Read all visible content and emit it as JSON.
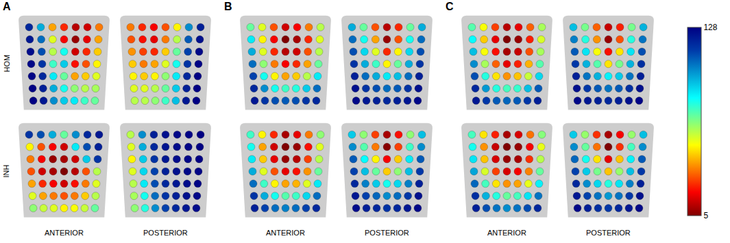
{
  "chart_data": {
    "type": "scatter",
    "marker": "circle",
    "tick_labels": false,
    "colorbar_range": [
      5,
      128
    ],
    "colorbar_ticks": [
      5,
      128
    ],
    "rows": [
      "HOM",
      "INH"
    ],
    "panels": [
      {
        "label": "A",
        "views": [
          "ANTERIOR",
          "POSTERIOR"
        ],
        "cells": [
          [
            [
              [
                118,
                95,
                40,
                25,
                12,
                15,
                35
              ],
              [
                122,
                105,
                55,
                20,
                8,
                18,
                40
              ],
              [
                125,
                110,
                60,
                80,
                15,
                25,
                45
              ],
              [
                126,
                115,
                75,
                90,
                22,
                30,
                50
              ],
              [
                127,
                118,
                85,
                70,
                40,
                45,
                55
              ],
              [
                128,
                120,
                95,
                80,
                65,
                60,
                62
              ],
              [
                128,
                122,
                100,
                90,
                85,
                75,
                70
              ]
            ],
            [
              [
                35,
                25,
                20,
                30,
                50,
                100,
                120
              ],
              [
                30,
                22,
                18,
                35,
                60,
                108,
                124
              ],
              [
                38,
                28,
                25,
                45,
                70,
                112,
                126
              ],
              [
                45,
                35,
                40,
                55,
                80,
                115,
                127
              ],
              [
                50,
                45,
                50,
                65,
                85,
                118,
                128
              ],
              [
                55,
                55,
                60,
                70,
                90,
                120,
                128
              ],
              [
                60,
                60,
                65,
                75,
                92,
                122,
                128
              ]
            ]
          ],
          [
            [
              [
                115,
                110,
                95,
                70,
                100,
                118,
                122
              ],
              [
                50,
                30,
                20,
                15,
                85,
                110,
                120
              ],
              [
                35,
                20,
                8,
                10,
                15,
                90,
                115
              ],
              [
                30,
                15,
                10,
                5,
                12,
                30,
                60
              ],
              [
                40,
                25,
                20,
                15,
                22,
                35,
                55
              ],
              [
                55,
                40,
                35,
                30,
                35,
                45,
                60
              ],
              [
                65,
                58,
                55,
                50,
                52,
                58,
                70
              ]
            ],
            [
              [
                60,
                100,
                120,
                124,
                126,
                127,
                128
              ],
              [
                55,
                95,
                118,
                123,
                125,
                127,
                128
              ],
              [
                50,
                90,
                115,
                122,
                125,
                126,
                128
              ],
              [
                55,
                88,
                112,
                120,
                124,
                126,
                127
              ],
              [
                60,
                85,
                110,
                118,
                122,
                125,
                127
              ],
              [
                62,
                80,
                105,
                115,
                120,
                124,
                126
              ],
              [
                65,
                78,
                100,
                112,
                118,
                122,
                125
              ]
            ]
          ]
        ]
      },
      {
        "label": "B",
        "views": [
          "ANTERIOR",
          "POSTERIOR"
        ],
        "cells": [
          [
            [
              [
                70,
                55,
                30,
                15,
                20,
                35,
                60
              ],
              [
                85,
                50,
                20,
                5,
                10,
                25,
                55
              ],
              [
                95,
                55,
                25,
                12,
                15,
                30,
                60
              ],
              [
                105,
                65,
                35,
                20,
                25,
                40,
                70
              ],
              [
                112,
                80,
                50,
                40,
                45,
                60,
                85
              ],
              [
                118,
                100,
                80,
                75,
                78,
                90,
                105
              ],
              [
                122,
                115,
                110,
                108,
                110,
                115,
                118
              ]
            ],
            [
              [
                95,
                70,
                30,
                12,
                25,
                70,
                95
              ],
              [
                105,
                80,
                40,
                8,
                30,
                80,
                105
              ],
              [
                110,
                88,
                55,
                25,
                50,
                88,
                110
              ],
              [
                115,
                95,
                75,
                50,
                70,
                95,
                115
              ],
              [
                120,
                105,
                95,
                85,
                92,
                105,
                120
              ],
              [
                124,
                115,
                110,
                105,
                108,
                115,
                124
              ],
              [
                126,
                122,
                120,
                118,
                120,
                122,
                126
              ]
            ]
          ],
          [
            [
              [
                75,
                50,
                25,
                10,
                18,
                35,
                65
              ],
              [
                80,
                40,
                15,
                5,
                8,
                22,
                55
              ],
              [
                85,
                45,
                18,
                8,
                12,
                28,
                60
              ],
              [
                95,
                55,
                30,
                18,
                22,
                38,
                70
              ],
              [
                105,
                75,
                50,
                40,
                42,
                55,
                85
              ],
              [
                115,
                95,
                80,
                72,
                75,
                88,
                105
              ],
              [
                120,
                112,
                105,
                102,
                105,
                112,
                118
              ]
            ],
            [
              [
                90,
                65,
                28,
                10,
                22,
                65,
                92
              ],
              [
                100,
                72,
                35,
                6,
                28,
                75,
                100
              ],
              [
                108,
                82,
                50,
                20,
                45,
                85,
                108
              ],
              [
                112,
                92,
                70,
                45,
                65,
                92,
                114
              ],
              [
                118,
                102,
                90,
                80,
                88,
                102,
                120
              ],
              [
                122,
                112,
                106,
                100,
                105,
                114,
                124
              ],
              [
                125,
                120,
                118,
                115,
                118,
                122,
                126
              ]
            ]
          ]
        ]
      },
      {
        "label": "C",
        "views": [
          "ANTERIOR",
          "POSTERIOR"
        ],
        "cells": [
          [
            [
              [
                72,
                52,
                28,
                12,
                18,
                32,
                62
              ],
              [
                82,
                45,
                18,
                5,
                8,
                24,
                56
              ],
              [
                92,
                52,
                22,
                10,
                14,
                30,
                62
              ],
              [
                100,
                62,
                32,
                18,
                24,
                42,
                72
              ],
              [
                110,
                78,
                48,
                38,
                44,
                58,
                88
              ],
              [
                118,
                98,
                78,
                74,
                76,
                92,
                108
              ],
              [
                122,
                114,
                108,
                106,
                108,
                114,
                120
              ]
            ],
            [
              [
                92,
                68,
                32,
                14,
                24,
                68,
                94
              ],
              [
                102,
                78,
                38,
                8,
                30,
                78,
                104
              ],
              [
                108,
                86,
                52,
                22,
                48,
                86,
                110
              ],
              [
                114,
                94,
                72,
                48,
                68,
                94,
                116
              ],
              [
                120,
                104,
                94,
                84,
                90,
                104,
                120
              ],
              [
                124,
                114,
                108,
                104,
                108,
                116,
                124
              ],
              [
                126,
                122,
                120,
                118,
                120,
                124,
                127
              ]
            ]
          ],
          [
            [
              [
                74,
                48,
                24,
                10,
                16,
                34,
                66
              ],
              [
                80,
                38,
                14,
                5,
                8,
                20,
                54
              ],
              [
                86,
                44,
                16,
                8,
                10,
                26,
                60
              ],
              [
                96,
                56,
                28,
                16,
                20,
                36,
                70
              ],
              [
                106,
                74,
                48,
                38,
                40,
                54,
                84
              ],
              [
                116,
                94,
                78,
                70,
                74,
                86,
                104
              ],
              [
                120,
                110,
                104,
                100,
                104,
                110,
                118
              ]
            ],
            [
              [
                90,
                64,
                26,
                10,
                20,
                64,
                92
              ],
              [
                100,
                70,
                34,
                5,
                26,
                74,
                100
              ],
              [
                106,
                80,
                48,
                18,
                44,
                84,
                108
              ],
              [
                112,
                90,
                68,
                44,
                64,
                92,
                114
              ],
              [
                118,
                100,
                88,
                78,
                86,
                102,
                120
              ],
              [
                122,
                112,
                104,
                98,
                104,
                114,
                124
              ],
              [
                126,
                120,
                116,
                114,
                118,
                122,
                126
              ]
            ]
          ]
        ]
      }
    ]
  }
}
